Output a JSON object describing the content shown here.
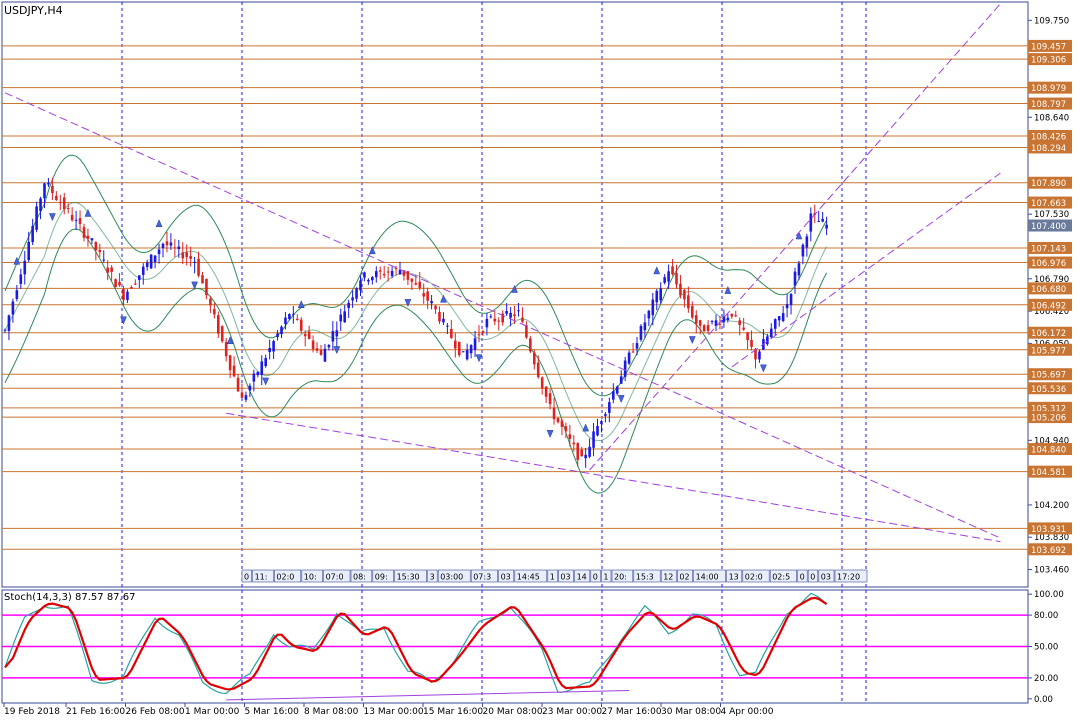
{
  "window": {
    "title": "USDJPY,H4",
    "stoch_label": "Stoch(14,3,3) 87.57 87.67"
  },
  "colors": {
    "background": "#ffffff",
    "grid": "#1a1aff",
    "axis_frame": "#3b4a9a",
    "bull_candle": "#1a1ae6",
    "bear_candle": "#dd2222",
    "bollinger": "#2e8b57",
    "level_line": "#c87533",
    "trendline": "#a040e0",
    "stoch_main": "#2aa0a0",
    "stoch_signal": "#e00000",
    "stoch_levels": "#ff00ff",
    "current_price_tag": "#6a7a9a"
  },
  "chart_data": [
    {
      "type": "candlestick",
      "title": "USDJPY,H4",
      "price_ticks": [
        "109.750",
        "108.640",
        "107.530",
        "106.790",
        "106.420",
        "106.050",
        "104.940",
        "104.200",
        "103.830",
        "103.460"
      ],
      "level_labels": [
        "109.457",
        "109.306",
        "108.979",
        "108.797",
        "108.426",
        "108.294",
        "107.890",
        "107.663",
        "107.143",
        "106.976",
        "106.680",
        "106.492",
        "106.172",
        "105.977",
        "105.697",
        "105.536",
        "105.312",
        "105.206",
        "104.840",
        "104.581",
        "103.931",
        "103.692"
      ],
      "current_price": "107.400",
      "date_labels": [
        "19 Feb 2018",
        "21 Feb 16:00",
        "26 Feb 08:00",
        "1 Mar 00:00",
        "5 Mar 16:00",
        "8 Mar 08:00",
        "13 Mar 00:00",
        "15 Mar 16:00",
        "20 Mar 08:00",
        "23 Mar 00:00",
        "27 Mar 16:00",
        "30 Mar 08:00",
        "4 Apr 00:00"
      ],
      "time_markers": [
        "0",
        "11:",
        "02:0",
        "10:",
        "07:0",
        "08:",
        "09:",
        "15:30",
        "3",
        "03:00",
        "07:3",
        "03",
        "14:45",
        "1",
        "03",
        "14",
        "0",
        "1",
        "20:",
        "15:3",
        "12",
        "02",
        "14:00",
        "13",
        "02:0",
        "02:5",
        "0",
        "0",
        "03",
        "17:20",
        "8:0",
        "20:",
        "22:30"
      ],
      "ylim": [
        103.26,
        109.96
      ],
      "key_points": [
        {
          "i": 0,
          "p": 106.2
        },
        {
          "i": 10,
          "p": 107.9
        },
        {
          "i": 22,
          "p": 107.2
        },
        {
          "i": 30,
          "p": 106.6
        },
        {
          "i": 40,
          "p": 107.2
        },
        {
          "i": 48,
          "p": 107.0
        },
        {
          "i": 60,
          "p": 105.4
        },
        {
          "i": 72,
          "p": 106.4
        },
        {
          "i": 80,
          "p": 105.9
        },
        {
          "i": 90,
          "p": 106.8
        },
        {
          "i": 100,
          "p": 106.9
        },
        {
          "i": 108,
          "p": 106.5
        },
        {
          "i": 116,
          "p": 105.9
        },
        {
          "i": 122,
          "p": 106.3
        },
        {
          "i": 130,
          "p": 106.4
        },
        {
          "i": 138,
          "p": 105.3
        },
        {
          "i": 146,
          "p": 104.7
        },
        {
          "i": 154,
          "p": 105.5
        },
        {
          "i": 162,
          "p": 106.3
        },
        {
          "i": 168,
          "p": 106.9
        },
        {
          "i": 176,
          "p": 106.2
        },
        {
          "i": 184,
          "p": 106.4
        },
        {
          "i": 190,
          "p": 105.9
        },
        {
          "i": 198,
          "p": 106.5
        },
        {
          "i": 204,
          "p": 107.5
        },
        {
          "i": 208,
          "p": 107.4
        }
      ],
      "trendlines": [
        {
          "from": {
            "i": 0,
            "p": 108.92
          },
          "to": {
            "i": 252,
            "p": 103.82
          }
        },
        {
          "from": {
            "i": 56,
            "p": 105.25
          },
          "to": {
            "i": 252,
            "p": 103.78
          }
        },
        {
          "from": {
            "i": 148,
            "p": 104.6
          },
          "to": {
            "i": 252,
            "p": 109.94
          }
        },
        {
          "from": {
            "i": 184,
            "p": 105.78
          },
          "to": {
            "i": 252,
            "p": 108.0
          }
        }
      ],
      "grid": true
    },
    {
      "type": "line",
      "title": "Stoch(14,3,3) 87.57 87.67",
      "ylim": [
        -4,
        104
      ],
      "y_ticks": [
        "100.00",
        "80.00",
        "50.00",
        "20.00",
        "0.00"
      ],
      "levels": [
        80,
        50,
        20
      ],
      "key_points": [
        {
          "i": 0,
          "v": 30
        },
        {
          "i": 5,
          "v": 75
        },
        {
          "i": 10,
          "v": 92
        },
        {
          "i": 16,
          "v": 86
        },
        {
          "i": 22,
          "v": 18
        },
        {
          "i": 30,
          "v": 20
        },
        {
          "i": 38,
          "v": 80
        },
        {
          "i": 44,
          "v": 60
        },
        {
          "i": 50,
          "v": 15
        },
        {
          "i": 56,
          "v": 8
        },
        {
          "i": 62,
          "v": 20
        },
        {
          "i": 68,
          "v": 65
        },
        {
          "i": 72,
          "v": 50
        },
        {
          "i": 78,
          "v": 45
        },
        {
          "i": 84,
          "v": 85
        },
        {
          "i": 90,
          "v": 60
        },
        {
          "i": 96,
          "v": 70
        },
        {
          "i": 102,
          "v": 25
        },
        {
          "i": 108,
          "v": 15
        },
        {
          "i": 114,
          "v": 40
        },
        {
          "i": 120,
          "v": 70
        },
        {
          "i": 128,
          "v": 90
        },
        {
          "i": 136,
          "v": 45
        },
        {
          "i": 140,
          "v": 10
        },
        {
          "i": 148,
          "v": 12
        },
        {
          "i": 156,
          "v": 60
        },
        {
          "i": 162,
          "v": 85
        },
        {
          "i": 168,
          "v": 65
        },
        {
          "i": 174,
          "v": 80
        },
        {
          "i": 180,
          "v": 70
        },
        {
          "i": 186,
          "v": 25
        },
        {
          "i": 190,
          "v": 22
        },
        {
          "i": 198,
          "v": 85
        },
        {
          "i": 204,
          "v": 98
        },
        {
          "i": 208,
          "v": 88
        }
      ],
      "grid": true
    }
  ]
}
